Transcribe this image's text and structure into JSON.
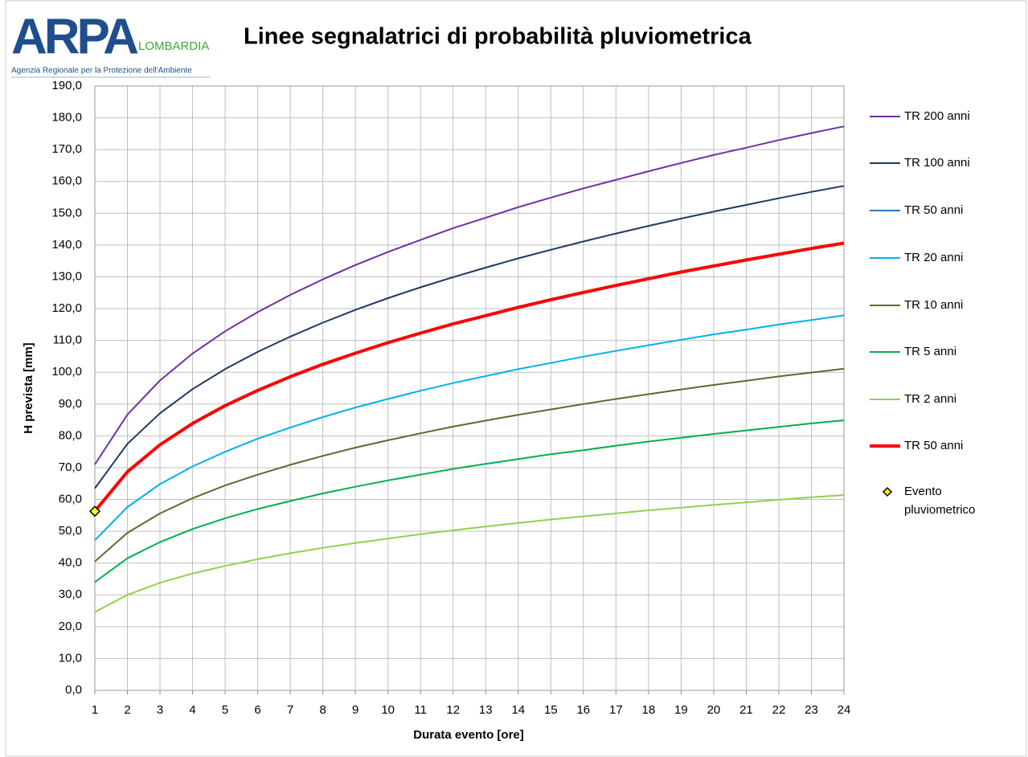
{
  "logo": {
    "mark": "ARPA",
    "name": "LOMBARDIA",
    "subtitle": "Agenzia Regionale per la Protezione dell'Ambiente"
  },
  "chart_data": {
    "type": "line",
    "title": "Linee segnalatrici di probabilità pluviometrica",
    "x_label": "Durata evento [ore]",
    "y_label": "H prevista [mm]",
    "grid": true,
    "legend": "right",
    "x": [
      1,
      2,
      3,
      4,
      5,
      6,
      7,
      8,
      9,
      10,
      11,
      12,
      13,
      14,
      15,
      16,
      17,
      18,
      19,
      20,
      21,
      22,
      23,
      24
    ],
    "xlim": [
      1,
      24
    ],
    "xticks": [
      1,
      2,
      3,
      4,
      5,
      6,
      7,
      8,
      9,
      10,
      11,
      12,
      13,
      14,
      15,
      16,
      17,
      18,
      19,
      20,
      21,
      22,
      23,
      24
    ],
    "ylim": [
      0,
      190
    ],
    "yticks": [
      {
        "value": 0,
        "label": "0,0"
      },
      {
        "value": 10,
        "label": "10,0"
      },
      {
        "value": 20,
        "label": "20,0"
      },
      {
        "value": 30,
        "label": "30,0"
      },
      {
        "value": 40,
        "label": "40,0"
      },
      {
        "value": 50,
        "label": "50,0"
      },
      {
        "value": 60,
        "label": "60,0"
      },
      {
        "value": 70,
        "label": "70,0"
      },
      {
        "value": 80,
        "label": "80,0"
      },
      {
        "value": 90,
        "label": "90,0"
      },
      {
        "value": 100,
        "label": "100,0"
      },
      {
        "value": 110,
        "label": "110,0"
      },
      {
        "value": 120,
        "label": "120,0"
      },
      {
        "value": 130,
        "label": "130,0"
      },
      {
        "value": 140,
        "label": "140,0"
      },
      {
        "value": 150,
        "label": "150,0"
      },
      {
        "value": 160,
        "label": "160,0"
      },
      {
        "value": 170,
        "label": "170,0"
      },
      {
        "value": 180,
        "label": "180,0"
      },
      {
        "value": 190,
        "label": "190,0"
      }
    ],
    "series": [
      {
        "name": "TR 200 anni",
        "color": "#7030a0",
        "values": [
          71.0,
          86.7,
          97.4,
          105.9,
          112.9,
          118.9,
          124.3,
          129.2,
          133.7,
          137.8,
          141.6,
          145.3,
          148.6,
          151.9,
          154.9,
          157.8,
          160.5,
          163.2,
          165.8,
          168.3,
          170.6,
          173.0,
          175.2,
          177.3
        ]
      },
      {
        "name": "TR 100 anni",
        "color": "#1f3864",
        "values": [
          63.5,
          77.5,
          87.1,
          94.7,
          101.0,
          106.4,
          111.2,
          115.6,
          119.6,
          123.3,
          126.7,
          129.9,
          132.9,
          135.8,
          138.5,
          141.1,
          143.6,
          146.0,
          148.3,
          150.5,
          152.6,
          154.7,
          156.7,
          158.6
        ]
      },
      {
        "name": "TR 50 anni",
        "color": "#2e75b6",
        "values": [
          56.3,
          68.7,
          77.2,
          83.9,
          89.5,
          94.3,
          98.6,
          102.5,
          106.0,
          109.3,
          112.3,
          115.2,
          117.8,
          120.4,
          122.8,
          125.1,
          127.3,
          129.4,
          131.5,
          133.4,
          135.3,
          137.1,
          138.9,
          140.6
        ]
      },
      {
        "name": "TR 20 anni",
        "color": "#00b0f0",
        "values": [
          47.2,
          57.6,
          64.8,
          70.4,
          75.0,
          79.1,
          82.6,
          85.9,
          88.9,
          91.6,
          94.2,
          96.6,
          98.8,
          101.0,
          102.9,
          104.9,
          106.7,
          108.5,
          110.2,
          111.9,
          113.4,
          115.0,
          116.4,
          117.9
        ]
      },
      {
        "name": "TR 10 anni",
        "color": "#5a6b2f",
        "values": [
          40.5,
          49.5,
          55.6,
          60.4,
          64.4,
          67.8,
          70.9,
          73.7,
          76.3,
          78.6,
          80.8,
          82.9,
          84.8,
          86.6,
          88.3,
          90.0,
          91.6,
          93.1,
          94.6,
          96.0,
          97.3,
          98.7,
          99.9,
          101.1
        ]
      },
      {
        "name": "TR 5 anni",
        "color": "#00b050",
        "values": [
          34.0,
          41.5,
          46.6,
          50.7,
          54.1,
          57.0,
          59.5,
          61.9,
          64.0,
          66.0,
          67.8,
          69.6,
          71.2,
          72.7,
          74.2,
          75.5,
          76.9,
          78.2,
          79.4,
          80.6,
          81.7,
          82.8,
          83.9,
          84.9
        ]
      },
      {
        "name": "TR 2 anni",
        "color": "#92d050",
        "values": [
          24.6,
          30.0,
          33.8,
          36.7,
          39.1,
          41.2,
          43.1,
          44.8,
          46.3,
          47.7,
          49.1,
          50.3,
          51.5,
          52.6,
          53.7,
          54.7,
          55.6,
          56.6,
          57.4,
          58.3,
          59.1,
          59.9,
          60.7,
          61.4
        ]
      },
      {
        "name": "TR 50 anni",
        "color": "#ff0000",
        "line_width": 4,
        "values": [
          56.3,
          68.7,
          77.2,
          83.9,
          89.5,
          94.3,
          98.6,
          102.5,
          106.0,
          109.3,
          112.3,
          115.2,
          117.8,
          120.4,
          122.8,
          125.1,
          127.3,
          129.4,
          131.5,
          133.4,
          135.3,
          137.1,
          138.9,
          140.6
        ]
      },
      {
        "name": "Evento pluviometrico",
        "color": "#ffff00",
        "marker": "diamond",
        "x": [
          1
        ],
        "values": [
          56.3
        ]
      }
    ]
  }
}
